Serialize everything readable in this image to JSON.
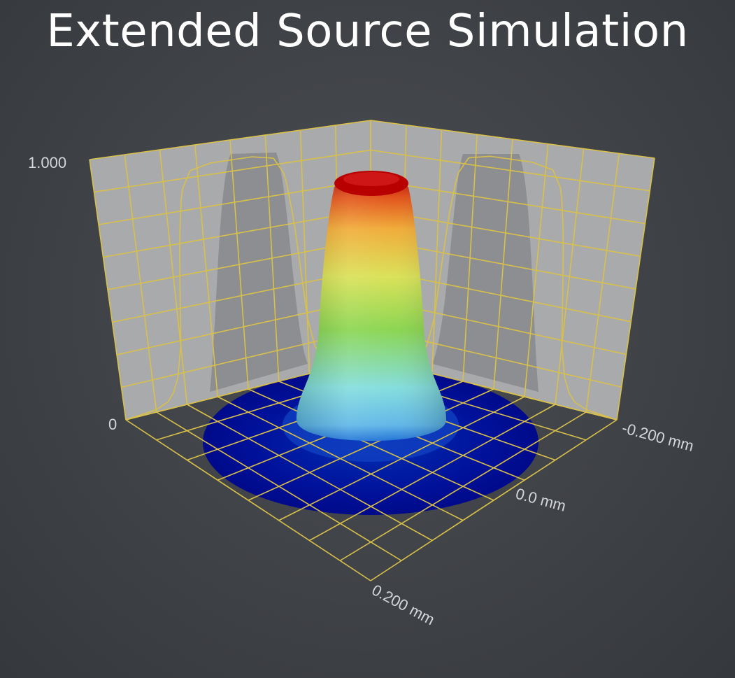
{
  "title": "Extended Source Simulation",
  "chart_data": {
    "type": "surface",
    "title": "Extended Source Simulation",
    "colormap": [
      "#00008b",
      "#0050c8",
      "#3fa7df",
      "#7fdcdc",
      "#8bd64a",
      "#e8e050",
      "#f0a020",
      "#c80000"
    ],
    "z_axis": {
      "ticks": [
        "0",
        "1.000"
      ],
      "range": [
        0,
        1
      ]
    },
    "x_axis": {
      "ticks": [
        "-0.200 mm",
        "0.0 mm"
      ],
      "range": [
        -0.2,
        0.2
      ]
    },
    "y_axis": {
      "ticks": [
        "0.200 mm"
      ],
      "range": [
        -0.2,
        0.2
      ]
    },
    "profile": {
      "r_mm": [
        0.0,
        0.03,
        0.06,
        0.075,
        0.085,
        0.095,
        0.1,
        0.11,
        0.12,
        0.13,
        0.15,
        0.2
      ],
      "intensity": [
        1.0,
        1.0,
        0.98,
        0.9,
        0.7,
        0.4,
        0.25,
        0.12,
        0.06,
        0.03,
        0.01,
        0.0
      ]
    },
    "grid": true
  }
}
